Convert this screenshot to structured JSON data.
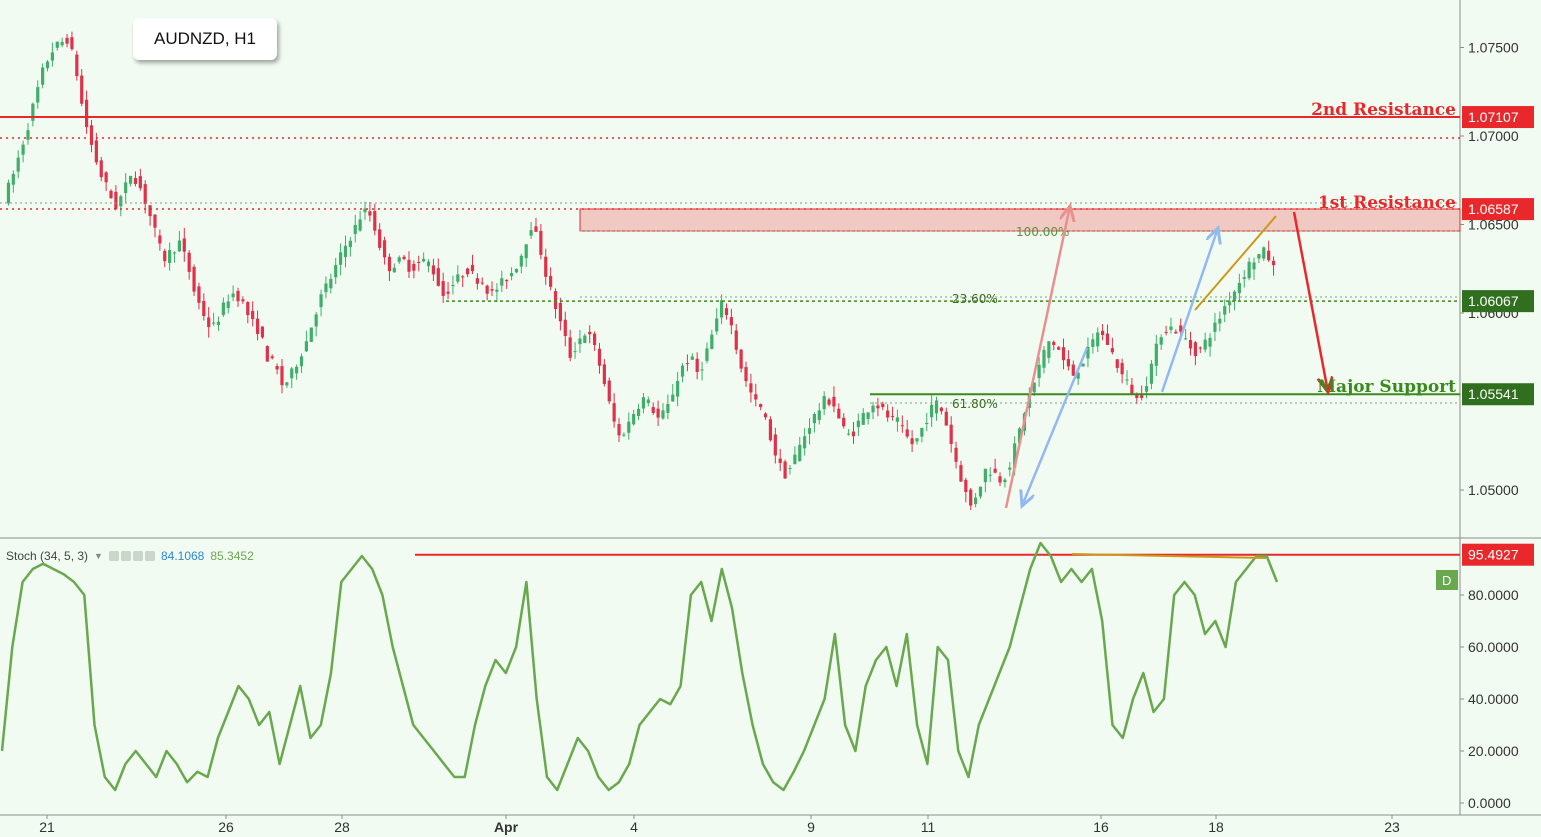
{
  "symbol_label": "AUDNZD, H1",
  "colors": {
    "background": "#f1fbf1",
    "bull_candle": "#3fae6a",
    "bear_candle": "#e0304a",
    "resistance": "#e8282b",
    "support": "#3a8a1e",
    "stoch_line": "#6aa84f",
    "divergence": "#c99a1a",
    "arrow_up": "#ea8f8f",
    "arrow_blue": "#93b9f0"
  },
  "price_scale": {
    "ticks": [
      "1.07500",
      "1.07000",
      "1.06500",
      "1.06000",
      "1.05000"
    ],
    "tick_values": [
      1.075,
      1.07,
      1.065,
      1.06,
      1.05
    ]
  },
  "stoch_scale": {
    "ticks": [
      "80.0000",
      "60.0000",
      "40.0000",
      "20.0000",
      "0.0000"
    ],
    "tick_values": [
      80,
      60,
      40,
      20,
      0
    ]
  },
  "time_axis": {
    "labels": [
      "21",
      "26",
      "28",
      "Apr",
      "4",
      "9",
      "11",
      "16",
      "18",
      "23"
    ]
  },
  "levels": {
    "second_resistance": {
      "label": "2nd Resistance",
      "value_text": "1.07107",
      "value": 1.07107
    },
    "first_resistance": {
      "label": "1st Resistance",
      "value_text": "1.06587",
      "value": 1.06587
    },
    "level_mid": {
      "value_text": "1.06067",
      "value": 1.06067
    },
    "major_support": {
      "label": "Major Support",
      "value_text": "1.05541",
      "value": 1.05541
    }
  },
  "fib_labels": [
    "100.00%",
    "23.60%",
    "61.80%"
  ],
  "stoch": {
    "title": "Stoch (34, 5, 3)",
    "k_value": "84.1068",
    "d_value": "85.3452",
    "level_text": "95.4927",
    "level": 95.4927,
    "badge": "D"
  },
  "chart_data": {
    "type": "candlestick",
    "price_path": [
      1.0665,
      1.0675,
      1.069,
      1.0705,
      1.0722,
      1.0738,
      1.0748,
      1.0752,
      1.0755,
      1.074,
      1.0712,
      1.0695,
      1.068,
      1.067,
      1.066,
      1.0668,
      1.068,
      1.0672,
      1.066,
      1.0645,
      1.063,
      1.0635,
      1.064,
      1.0628,
      1.061,
      1.06,
      1.059,
      1.0598,
      1.0608,
      1.0612,
      1.0605,
      1.0595,
      1.059,
      1.0575,
      1.057,
      1.0558,
      1.0565,
      1.0575,
      1.0585,
      1.06,
      1.0612,
      1.062,
      1.063,
      1.064,
      1.0648,
      1.0658,
      1.0655,
      1.064,
      1.0625,
      1.0628,
      1.063,
      1.0625,
      1.0628,
      1.063,
      1.0622,
      1.061,
      1.0615,
      1.062,
      1.0625,
      1.062,
      1.0618,
      1.061,
      1.0615,
      1.062,
      1.0625,
      1.0635,
      1.065,
      1.064,
      1.062,
      1.0605,
      1.059,
      1.0575,
      1.0585,
      1.059,
      1.058,
      1.0565,
      1.0545,
      1.053,
      1.0535,
      1.0545,
      1.0552,
      1.0548,
      1.054,
      1.0545,
      1.0558,
      1.057,
      1.0575,
      1.0565,
      1.0578,
      1.0592,
      1.0606,
      1.0595,
      1.0575,
      1.056,
      1.055,
      1.0545,
      1.053,
      1.0515,
      1.0508,
      1.0518,
      1.0528,
      1.0538,
      1.0545,
      1.0552,
      1.0548,
      1.0535,
      1.053,
      1.0538,
      1.0545,
      1.055,
      1.0545,
      1.054,
      1.0538,
      1.053,
      1.0525,
      1.0535,
      1.0545,
      1.055,
      1.0538,
      1.052,
      1.0505,
      1.049,
      1.05,
      1.0512,
      1.051,
      1.0505,
      1.0515,
      1.053,
      1.0548,
      1.056,
      1.0575,
      1.0585,
      1.058,
      1.057,
      1.0565,
      1.0572,
      1.058,
      1.059,
      1.0585,
      1.0575,
      1.0565,
      1.0558,
      1.055,
      1.056,
      1.0575,
      1.059,
      1.0592,
      1.059,
      1.0585,
      1.0578,
      1.058,
      1.0588,
      1.0595,
      1.0605,
      1.0612,
      1.062,
      1.0628,
      1.0632,
      1.0635,
      1.0625
    ],
    "bearish_phase_indices": [
      9,
      10,
      11,
      12,
      13,
      14,
      18,
      19,
      20,
      23,
      24,
      25,
      26,
      30,
      31,
      32,
      33,
      34,
      35,
      47,
      48,
      55,
      61,
      68,
      69,
      70,
      71,
      72,
      73,
      76,
      77,
      78,
      79,
      83,
      88,
      93,
      94,
      95,
      96,
      97,
      98,
      99,
      100,
      106,
      107,
      113,
      114,
      115,
      121,
      122,
      123,
      124,
      127,
      134,
      135,
      139,
      140,
      141,
      142,
      143,
      144,
      145,
      152,
      153,
      163
    ],
    "stoch_path": [
      20,
      60,
      85,
      90,
      92,
      90,
      88,
      85,
      80,
      30,
      10,
      5,
      15,
      20,
      15,
      10,
      20,
      15,
      8,
      12,
      10,
      25,
      35,
      45,
      40,
      30,
      35,
      15,
      30,
      45,
      25,
      30,
      50,
      85,
      90,
      95,
      90,
      80,
      60,
      45,
      30,
      25,
      20,
      15,
      10,
      10,
      30,
      45,
      55,
      50,
      60,
      85,
      40,
      10,
      5,
      15,
      25,
      20,
      10,
      5,
      8,
      15,
      30,
      35,
      40,
      38,
      45,
      80,
      85,
      70,
      90,
      75,
      50,
      30,
      15,
      8,
      5,
      12,
      20,
      30,
      40,
      65,
      30,
      20,
      45,
      55,
      60,
      45,
      65,
      30,
      15,
      60,
      55,
      20,
      10,
      30,
      40,
      50,
      60,
      75,
      90,
      100,
      95,
      85,
      90,
      85,
      90,
      70,
      30,
      25,
      40,
      50,
      35,
      40,
      80,
      85,
      80,
      65,
      70,
      60,
      85,
      90,
      95,
      95,
      85
    ]
  }
}
